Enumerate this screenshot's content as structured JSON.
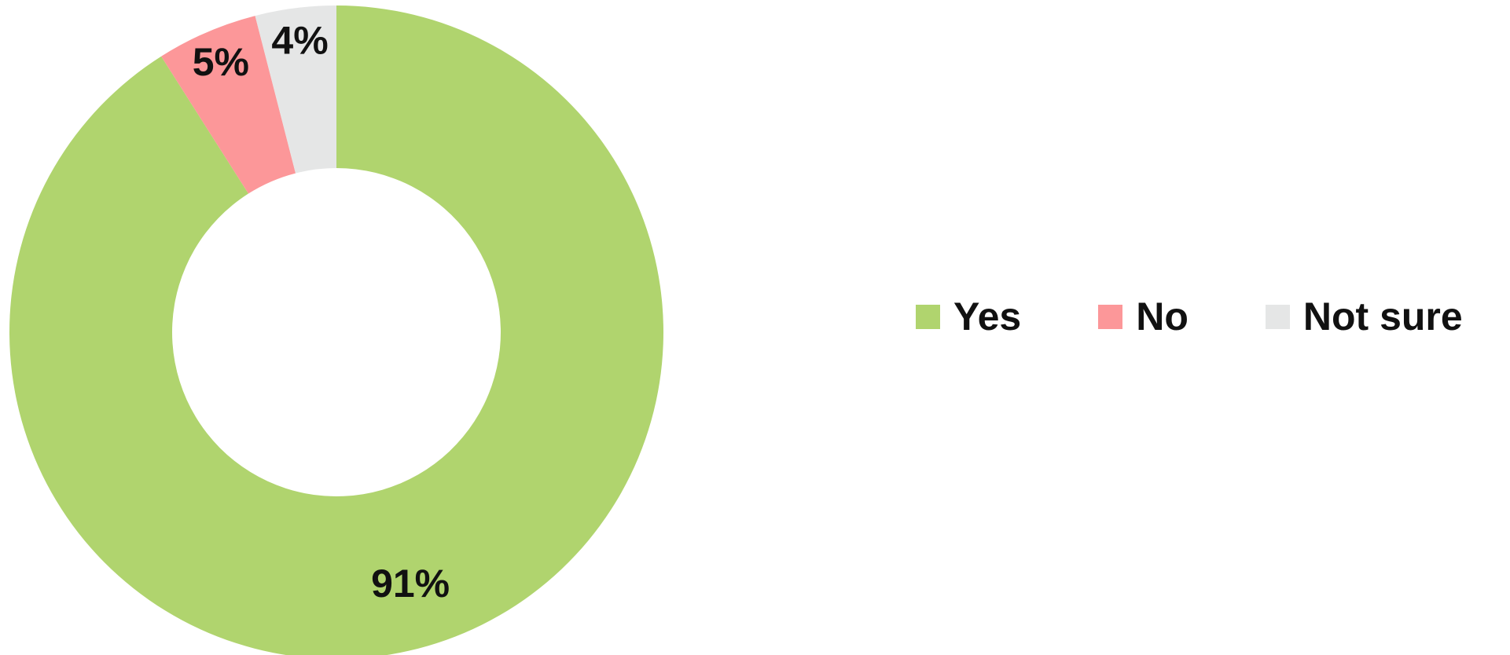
{
  "chart_data": {
    "type": "pie",
    "variant": "donut",
    "categories": [
      "Yes",
      "No",
      "Not sure"
    ],
    "values": [
      91,
      5,
      4
    ],
    "data_labels": [
      "91%",
      "5%",
      "4%"
    ],
    "colors": [
      "#b0d46e",
      "#fc9799",
      "#e5e6e6"
    ],
    "start_angle": "12 o'clock",
    "direction": "clockwise",
    "title": "",
    "legend": {
      "placement": "right",
      "items": [
        {
          "label": "Yes",
          "color": "#b0d46e"
        },
        {
          "label": "No",
          "color": "#fc9799"
        },
        {
          "label": "Not sure",
          "color": "#e5e6e6"
        }
      ]
    }
  }
}
